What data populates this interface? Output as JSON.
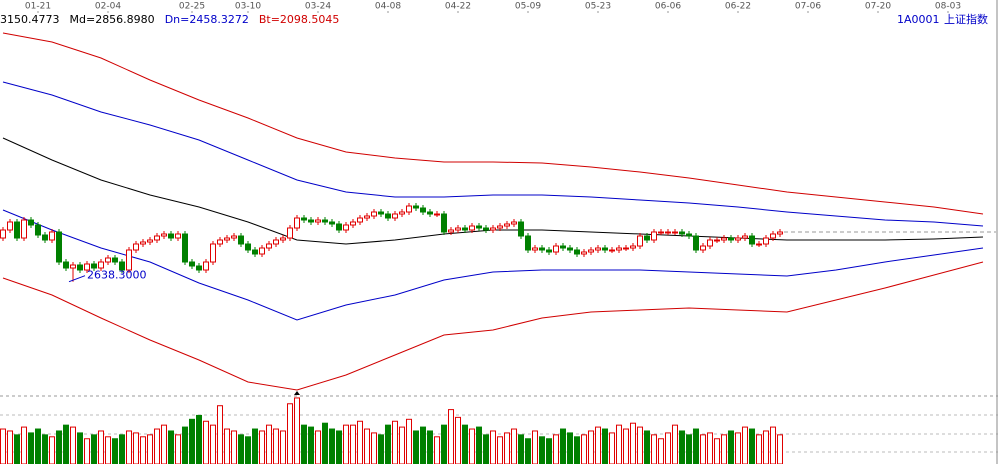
{
  "chart_data": {
    "type": "candlestick",
    "legend": [
      {
        "label": "3150.4773",
        "color": "#000000"
      },
      {
        "label": "Md=2856.8980",
        "color": "#000000"
      },
      {
        "label": "Dn=2458.3272",
        "color": "#0000c8"
      },
      {
        "label": "Bt=2098.5045",
        "color": "#d00000"
      }
    ],
    "symbol": "1A0001",
    "name": "上证指数",
    "low_label": "2638.3000",
    "up_color": "#e00000",
    "down_color": "#008000",
    "ylim": [
      2528,
      2920
    ],
    "volume_ylim": [
      0,
      70
    ],
    "xticks": [
      {
        "value": 5,
        "label": "01-21"
      },
      {
        "value": 15,
        "label": "02-04"
      },
      {
        "value": 27,
        "label": "02-25"
      },
      {
        "value": 35,
        "label": "03-10"
      },
      {
        "value": 45,
        "label": "03-24"
      },
      {
        "value": 55,
        "label": "04-08"
      },
      {
        "value": 65,
        "label": "04-22"
      },
      {
        "value": 75,
        "label": "05-09"
      },
      {
        "value": 85,
        "label": "05-23"
      },
      {
        "value": 95,
        "label": "06-06"
      },
      {
        "value": 105,
        "label": "06-22"
      },
      {
        "value": 115,
        "label": "07-06"
      },
      {
        "value": 125,
        "label": "07-20"
      },
      {
        "value": 135,
        "label": "08-03"
      }
    ],
    "open": [
      2682,
      2690,
      2698,
      2682,
      2700,
      2695,
      2685,
      2680,
      2688,
      2658,
      2652,
      2655,
      2650,
      2656,
      2652,
      2658,
      2662,
      2658,
      2650,
      2670,
      2676,
      2678,
      2680,
      2684,
      2686,
      2682,
      2686,
      2658,
      2654,
      2650,
      2658,
      2676,
      2680,
      2682,
      2684,
      2676,
      2670,
      2666,
      2672,
      2676,
      2680,
      2682,
      2692,
      2702,
      2700,
      2698,
      2700,
      2698,
      2696,
      2690,
      2695,
      2698,
      2702,
      2704,
      2708,
      2706,
      2702,
      2706,
      2708,
      2714,
      2712,
      2708,
      2706,
      2706,
      2688,
      2690,
      2692,
      2690,
      2694,
      2692,
      2690,
      2692,
      2694,
      2696,
      2698,
      2684,
      2670,
      2672,
      2670,
      2668,
      2674,
      2672,
      2670,
      2666,
      2668,
      2670,
      2672,
      2670,
      2670,
      2672,
      2672,
      2674,
      2684,
      2680,
      2688,
      2688,
      2688,
      2688,
      2686,
      2684,
      2670,
      2674,
      2680,
      2680,
      2682,
      2680,
      2682,
      2684,
      2676,
      2676,
      2682,
      2686
    ],
    "high": [
      2693,
      2701,
      2701,
      2703,
      2703,
      2698,
      2688,
      2691,
      2691,
      2661,
      2658,
      2658,
      2659,
      2659,
      2661,
      2665,
      2665,
      2661,
      2673,
      2679,
      2681,
      2683,
      2687,
      2689,
      2689,
      2689,
      2689,
      2661,
      2657,
      2661,
      2679,
      2683,
      2685,
      2687,
      2687,
      2679,
      2673,
      2675,
      2679,
      2683,
      2685,
      2695,
      2705,
      2705,
      2703,
      2703,
      2703,
      2701,
      2699,
      2698,
      2701,
      2705,
      2707,
      2711,
      2711,
      2709,
      2709,
      2711,
      2717,
      2717,
      2715,
      2711,
      2709,
      2709,
      2693,
      2695,
      2695,
      2697,
      2697,
      2695,
      2695,
      2697,
      2699,
      2701,
      2701,
      2687,
      2675,
      2675,
      2673,
      2677,
      2677,
      2675,
      2673,
      2671,
      2673,
      2675,
      2675,
      2673,
      2675,
      2675,
      2677,
      2687,
      2687,
      2691,
      2691,
      2691,
      2691,
      2691,
      2689,
      2687,
      2677,
      2683,
      2683,
      2685,
      2685,
      2685,
      2687,
      2687,
      2679,
      2685,
      2689,
      2691
    ],
    "low": [
      2679,
      2687,
      2679,
      2679,
      2692,
      2682,
      2677,
      2677,
      2655,
      2649,
      2638.3,
      2647,
      2647,
      2649,
      2649,
      2655,
      2655,
      2647,
      2647,
      2667,
      2673,
      2675,
      2677,
      2681,
      2679,
      2679,
      2655,
      2651,
      2647,
      2647,
      2655,
      2673,
      2677,
      2679,
      2673,
      2667,
      2663,
      2663,
      2669,
      2673,
      2677,
      2679,
      2689,
      2697,
      2695,
      2695,
      2695,
      2693,
      2687,
      2687,
      2692,
      2695,
      2699,
      2701,
      2703,
      2699,
      2699,
      2703,
      2705,
      2709,
      2705,
      2703,
      2703,
      2685,
      2685,
      2687,
      2687,
      2687,
      2689,
      2687,
      2687,
      2689,
      2691,
      2693,
      2681,
      2667,
      2667,
      2667,
      2665,
      2665,
      2669,
      2667,
      2663,
      2663,
      2665,
      2667,
      2667,
      2667,
      2667,
      2669,
      2669,
      2671,
      2677,
      2677,
      2685,
      2685,
      2685,
      2683,
      2681,
      2667,
      2667,
      2671,
      2677,
      2677,
      2677,
      2677,
      2679,
      2673,
      2673,
      2673,
      2679,
      2683
    ],
    "close": [
      2690,
      2698,
      2682,
      2700,
      2695,
      2685,
      2680,
      2688,
      2658,
      2652,
      2655,
      2650,
      2656,
      2652,
      2658,
      2662,
      2658,
      2650,
      2670,
      2676,
      2678,
      2680,
      2684,
      2686,
      2682,
      2686,
      2658,
      2654,
      2650,
      2658,
      2676,
      2680,
      2682,
      2684,
      2676,
      2670,
      2666,
      2672,
      2676,
      2680,
      2682,
      2692,
      2702,
      2700,
      2698,
      2700,
      2698,
      2696,
      2690,
      2695,
      2698,
      2702,
      2704,
      2708,
      2706,
      2702,
      2706,
      2708,
      2714,
      2712,
      2708,
      2706,
      2706,
      2688,
      2690,
      2692,
      2690,
      2694,
      2692,
      2690,
      2692,
      2694,
      2696,
      2698,
      2684,
      2670,
      2672,
      2670,
      2668,
      2674,
      2672,
      2670,
      2666,
      2668,
      2670,
      2672,
      2670,
      2670,
      2672,
      2672,
      2674,
      2684,
      2680,
      2688,
      2688,
      2688,
      2688,
      2686,
      2684,
      2670,
      2674,
      2680,
      2680,
      2682,
      2680,
      2682,
      2684,
      2676,
      2676,
      2682,
      2686,
      2688
    ],
    "volume": [
      36,
      34,
      30,
      38,
      32,
      36,
      30,
      28,
      34,
      40,
      38,
      32,
      26,
      30,
      34,
      28,
      26,
      30,
      34,
      32,
      28,
      30,
      36,
      40,
      34,
      30,
      38,
      46,
      50,
      44,
      40,
      60,
      36,
      34,
      30,
      28,
      36,
      34,
      40,
      36,
      34,
      62,
      68,
      40,
      38,
      34,
      42,
      36,
      34,
      40,
      40,
      44,
      36,
      32,
      30,
      40,
      44,
      38,
      46,
      34,
      38,
      34,
      28,
      40,
      56,
      48,
      40,
      36,
      38,
      30,
      34,
      28,
      32,
      36,
      30,
      26,
      34,
      28,
      26,
      30,
      36,
      32,
      28,
      30,
      34,
      38,
      36,
      32,
      40,
      36,
      42,
      38,
      34,
      30,
      26,
      32,
      40,
      34,
      30,
      36,
      30,
      32,
      26,
      30,
      34,
      32,
      38,
      36,
      30,
      34,
      38,
      30
    ],
    "band_x": [
      0,
      7,
      14,
      21,
      28,
      35,
      42,
      49,
      56,
      63,
      70,
      77,
      84,
      91,
      98,
      105,
      112,
      119,
      126,
      133,
      140
    ],
    "bands": [
      {
        "color": "#d00000",
        "values": [
          2887,
          2878,
          2862,
          2840,
          2820,
          2802,
          2782,
          2768,
          2762,
          2758,
          2758,
          2757,
          2753,
          2748,
          2742,
          2735,
          2728,
          2723,
          2718,
          2713,
          2706
        ]
      },
      {
        "color": "#0000c8",
        "values": [
          2838,
          2825,
          2808,
          2795,
          2780,
          2760,
          2740,
          2728,
          2723,
          2723,
          2725,
          2725,
          2723,
          2720,
          2717,
          2713,
          2708,
          2704,
          2700,
          2698,
          2694
        ]
      },
      {
        "color": "#000000",
        "values": [
          2782,
          2760,
          2740,
          2725,
          2713,
          2698,
          2680,
          2676,
          2680,
          2686,
          2690,
          2690,
          2688,
          2686,
          2684,
          2682,
          2680,
          2680,
          2680,
          2681,
          2683
        ]
      },
      {
        "color": "#0000c8",
        "values": [
          2710,
          2690,
          2672,
          2658,
          2637,
          2620,
          2600,
          2615,
          2625,
          2640,
          2648,
          2650,
          2650,
          2650,
          2648,
          2646,
          2644,
          2650,
          2658,
          2665,
          2672
        ]
      },
      {
        "color": "#d00000",
        "values": [
          2642,
          2625,
          2602,
          2580,
          2560,
          2538,
          2530,
          2545,
          2565,
          2585,
          2590,
          2602,
          2608,
          2610,
          2612,
          2610,
          2608,
          2620,
          2632,
          2645,
          2658
        ]
      }
    ]
  }
}
